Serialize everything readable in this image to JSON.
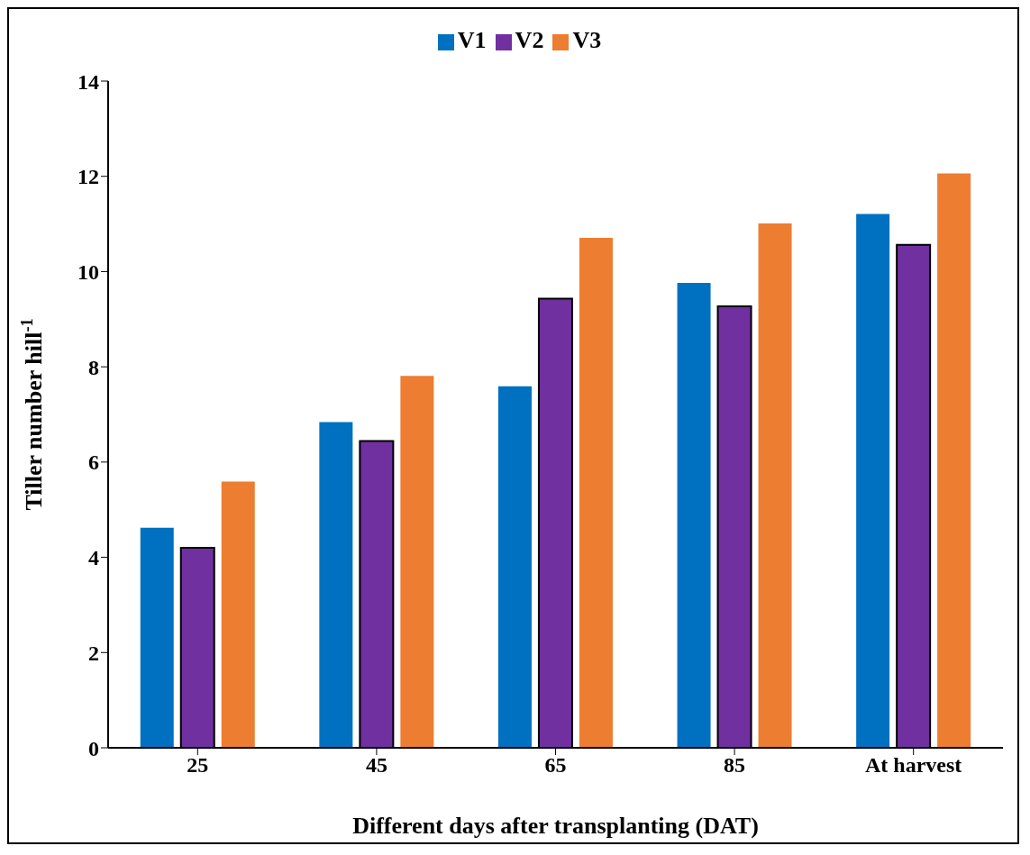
{
  "chart_data": {
    "type": "bar",
    "xlabel": "Different days after transplanting (DAT)",
    "ylabel": "Tiller number hill$^{-1}$",
    "categories": [
      "25",
      "45",
      "65",
      "85",
      "At harvest"
    ],
    "series": [
      {
        "name": "V1",
        "color": "#0070c0",
        "values": [
          4.62,
          6.84,
          7.59,
          9.76,
          11.21
        ]
      },
      {
        "name": "V2",
        "color": "#7030a0",
        "values": [
          4.2,
          6.44,
          9.43,
          9.27,
          10.56
        ]
      },
      {
        "name": "V3",
        "color": "#ed7d31",
        "values": [
          5.59,
          7.81,
          10.71,
          11.01,
          12.06
        ]
      }
    ],
    "ylim": [
      0,
      14
    ],
    "yticks": [
      0,
      2,
      4,
      6,
      8,
      10,
      12,
      14
    ],
    "grid": false,
    "legend": "top"
  }
}
